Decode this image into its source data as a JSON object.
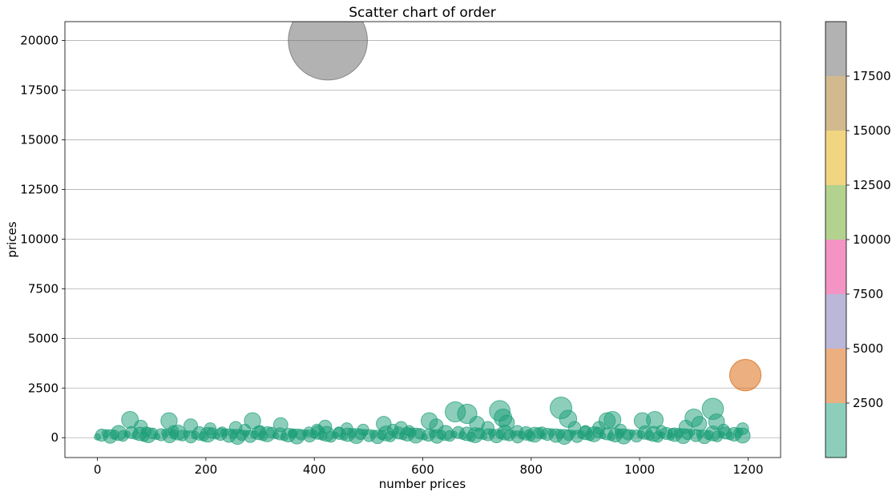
{
  "chart_data": {
    "type": "scatter",
    "title": "Scatter chart of order",
    "xlabel": "number prices",
    "ylabel": "prices",
    "xlim": [
      -60,
      1260
    ],
    "ylim": [
      -1000,
      20950
    ],
    "x_ticks": [
      0,
      200,
      400,
      600,
      800,
      1000,
      1200
    ],
    "y_ticks": [
      0,
      2500,
      5000,
      7500,
      10000,
      12500,
      15000,
      17500,
      20000
    ],
    "grid": "horizontal",
    "colormap": "Dark2",
    "colorbar": {
      "range": [
        0,
        20000
      ],
      "ticks": [
        2500,
        5000,
        7500,
        10000,
        12500,
        15000,
        17500
      ],
      "colors": [
        "#1b9e77",
        "#d95f02",
        "#7570b3",
        "#e7298a",
        "#66a61e",
        "#e6ab02",
        "#a6761d",
        "#666666"
      ]
    },
    "point_alpha": 0.5,
    "points": [
      {
        "x": 425,
        "y": 20000,
        "color": "#666666"
      },
      {
        "x": 1195,
        "y": 3150,
        "color": "#d95f02"
      },
      {
        "x": 60,
        "y": 900
      },
      {
        "x": 80,
        "y": 550
      },
      {
        "x": 90,
        "y": 300
      },
      {
        "x": 132,
        "y": 850
      },
      {
        "x": 140,
        "y": 350
      },
      {
        "x": 172,
        "y": 600
      },
      {
        "x": 208,
        "y": 450
      },
      {
        "x": 230,
        "y": 300
      },
      {
        "x": 255,
        "y": 500
      },
      {
        "x": 272,
        "y": 400
      },
      {
        "x": 286,
        "y": 850
      },
      {
        "x": 300,
        "y": 350
      },
      {
        "x": 338,
        "y": 650
      },
      {
        "x": 360,
        "y": 200
      },
      {
        "x": 390,
        "y": 300
      },
      {
        "x": 405,
        "y": 400
      },
      {
        "x": 420,
        "y": 550
      },
      {
        "x": 445,
        "y": 300
      },
      {
        "x": 460,
        "y": 450
      },
      {
        "x": 490,
        "y": 400
      },
      {
        "x": 528,
        "y": 700
      },
      {
        "x": 545,
        "y": 400
      },
      {
        "x": 560,
        "y": 500
      },
      {
        "x": 575,
        "y": 350
      },
      {
        "x": 612,
        "y": 850
      },
      {
        "x": 625,
        "y": 600
      },
      {
        "x": 660,
        "y": 1300
      },
      {
        "x": 682,
        "y": 1200
      },
      {
        "x": 700,
        "y": 700
      },
      {
        "x": 720,
        "y": 500
      },
      {
        "x": 742,
        "y": 1350
      },
      {
        "x": 748,
        "y": 1000
      },
      {
        "x": 755,
        "y": 750
      },
      {
        "x": 775,
        "y": 350
      },
      {
        "x": 795,
        "y": 200
      },
      {
        "x": 820,
        "y": 300
      },
      {
        "x": 855,
        "y": 1500
      },
      {
        "x": 868,
        "y": 950
      },
      {
        "x": 880,
        "y": 500
      },
      {
        "x": 900,
        "y": 350
      },
      {
        "x": 925,
        "y": 500
      },
      {
        "x": 940,
        "y": 850
      },
      {
        "x": 950,
        "y": 900
      },
      {
        "x": 965,
        "y": 400
      },
      {
        "x": 1005,
        "y": 850
      },
      {
        "x": 1028,
        "y": 900
      },
      {
        "x": 1040,
        "y": 350
      },
      {
        "x": 1060,
        "y": 250
      },
      {
        "x": 1085,
        "y": 550
      },
      {
        "x": 1100,
        "y": 1000
      },
      {
        "x": 1110,
        "y": 700
      },
      {
        "x": 1135,
        "y": 1450
      },
      {
        "x": 1142,
        "y": 800
      },
      {
        "x": 1155,
        "y": 400
      },
      {
        "x": 1190,
        "y": 450
      }
    ]
  }
}
